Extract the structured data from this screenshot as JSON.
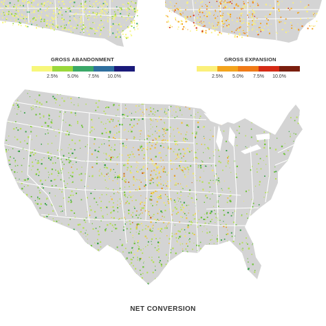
{
  "maps": {
    "abandonment": {
      "name": "gross-abandonment-map"
    },
    "expansion": {
      "name": "gross-expansion-map"
    },
    "net": {
      "name": "net-conversion-map"
    }
  },
  "legends": {
    "abandonment": {
      "title": "GROSS ABANDONMENT",
      "colors": [
        "#f7f77a",
        "#9ad83a",
        "#3aa868",
        "#2e6e9e",
        "#1a1a7a"
      ],
      "ticks": [
        "2.5%",
        "5.0%",
        "7.5%",
        "10.0%"
      ]
    },
    "expansion": {
      "title": "GROSS EXPANSION",
      "colors": [
        "#fbf07a",
        "#f3a41c",
        "#f07a16",
        "#d42a14",
        "#7a1e0e"
      ],
      "ticks": [
        "2.5%",
        "5.0%",
        "7.5%",
        "10.0%"
      ]
    }
  },
  "palette": {
    "land": "#d4d4d4",
    "borders": "#ffffff",
    "water": "#ffffff",
    "net_expansion": [
      "#f1e66a",
      "#eec33c",
      "#e49a22",
      "#cf6a16"
    ],
    "net_abandonment": [
      "#b5df59",
      "#6fc23a",
      "#2f9e3f"
    ]
  },
  "caption": "NET CONVERSION"
}
